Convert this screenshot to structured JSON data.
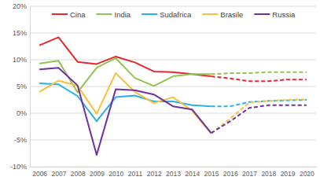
{
  "chart_data": {
    "type": "line",
    "categories": [
      "2006",
      "2007",
      "2008",
      "2009",
      "2010",
      "2011",
      "2012",
      "2013",
      "2014",
      "2015",
      "2016",
      "2017",
      "2018",
      "2019",
      "2020"
    ],
    "series": [
      {
        "name": "Cina",
        "color": "#e8262b",
        "line_style": "solid",
        "values": [
          12.7,
          14.2,
          9.6,
          9.2,
          10.6,
          9.5,
          7.8,
          7.7,
          7.3,
          6.9,
          null,
          null,
          null,
          null,
          null
        ]
      },
      {
        "name": "India",
        "color": "#92c353",
        "line_style": "solid",
        "values": [
          9.3,
          9.8,
          3.9,
          8.5,
          10.3,
          6.6,
          5.1,
          6.9,
          7.3,
          7.3,
          null,
          null,
          null,
          null,
          null
        ]
      },
      {
        "name": "Sudafrica",
        "color": "#2ab0e4",
        "line_style": "solid",
        "values": [
          5.6,
          5.4,
          3.2,
          -1.5,
          3.0,
          3.3,
          2.2,
          2.2,
          1.5,
          1.3,
          null,
          null,
          null,
          null,
          null
        ]
      },
      {
        "name": "Brasile",
        "color": "#f6c142",
        "line_style": "solid",
        "values": [
          4.0,
          6.1,
          5.1,
          -0.1,
          7.5,
          4.0,
          1.9,
          3.0,
          0.5,
          -3.8,
          null,
          null,
          null,
          null,
          null
        ]
      },
      {
        "name": "Russia",
        "color": "#7030a0",
        "line_style": "solid",
        "values": [
          8.2,
          8.5,
          5.2,
          -7.8,
          4.5,
          4.3,
          3.5,
          1.3,
          0.7,
          -3.7,
          null,
          null,
          null,
          null,
          null
        ]
      },
      {
        "color": "#e8262b",
        "line_style": "dashed",
        "values": [
          null,
          null,
          null,
          null,
          null,
          null,
          null,
          null,
          null,
          6.9,
          6.5,
          6.0,
          6.0,
          6.3,
          6.3
        ]
      },
      {
        "color": "#92c353",
        "line_style": "dashed",
        "values": [
          null,
          null,
          null,
          null,
          null,
          null,
          null,
          null,
          null,
          7.3,
          7.5,
          7.5,
          7.7,
          7.7,
          7.7
        ]
      },
      {
        "color": "#2ab0e4",
        "line_style": "dashed",
        "values": [
          null,
          null,
          null,
          null,
          null,
          null,
          null,
          null,
          null,
          1.3,
          1.3,
          2.1,
          2.3,
          2.4,
          2.5
        ]
      },
      {
        "color": "#f6c142",
        "line_style": "dashed",
        "values": [
          null,
          null,
          null,
          null,
          null,
          null,
          null,
          null,
          null,
          -3.8,
          -1.0,
          2.0,
          2.3,
          2.5,
          2.6
        ]
      },
      {
        "color": "#7030a0",
        "line_style": "dashed",
        "values": [
          null,
          null,
          null,
          null,
          null,
          null,
          null,
          null,
          null,
          -3.7,
          -1.5,
          1.0,
          1.5,
          1.5,
          1.5
        ]
      }
    ],
    "ylim": [
      -10,
      20
    ],
    "yticks": [
      {
        "value": -10,
        "label": "-10%"
      },
      {
        "value": -5,
        "label": "-5%"
      },
      {
        "value": 0,
        "label": "0%"
      },
      {
        "value": 5,
        "label": "5%"
      },
      {
        "value": 10,
        "label": "10%"
      },
      {
        "value": 15,
        "label": "15%"
      },
      {
        "value": 20,
        "label": "20%"
      }
    ],
    "grid": true,
    "legend": "top"
  }
}
